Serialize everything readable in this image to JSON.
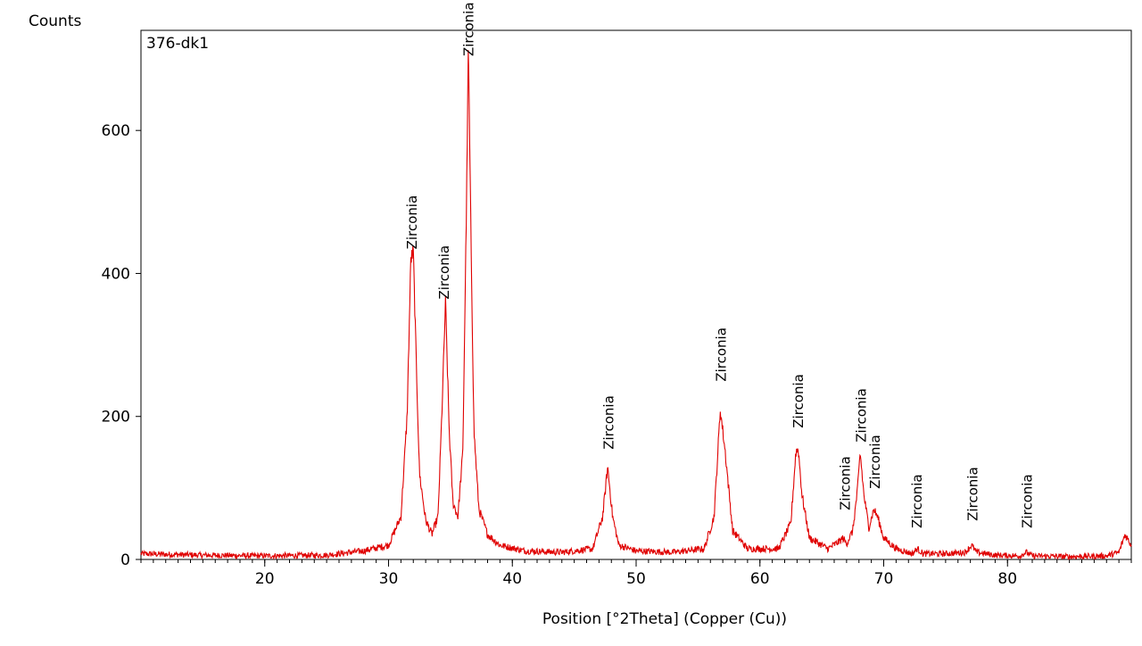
{
  "chart_data": {
    "type": "line",
    "sample_label": "376-dk1",
    "ylabel": "Counts",
    "xlabel": "Position [°2Theta] (Copper (Cu))",
    "xlim": [
      10,
      90
    ],
    "ylim": [
      0,
      740
    ],
    "x_ticks": [
      20,
      30,
      40,
      50,
      60,
      70,
      80
    ],
    "y_ticks": [
      0,
      200,
      400,
      600
    ],
    "x_minor_step": 1,
    "grid": false,
    "line_color": "#e00000",
    "series": [
      {
        "x": [
          10,
          15,
          20,
          25,
          28,
          30,
          31,
          31.5,
          31.8,
          32.0,
          32.2,
          32.5,
          33,
          33.5,
          34.0,
          34.3,
          34.6,
          34.9,
          35.2,
          35.6,
          36.0,
          36.3,
          36.45,
          36.6,
          36.9,
          37.3,
          38,
          39,
          41,
          44,
          46.5,
          47.3,
          47.7,
          48.1,
          48.6,
          50,
          53,
          55.5,
          56.3,
          56.8,
          57.2,
          57.8,
          59,
          61.5,
          62.5,
          62.9,
          63.1,
          63.4,
          64,
          65.5,
          66.4,
          66.7,
          67.0,
          67.5,
          67.9,
          68.1,
          68.4,
          68.8,
          69.2,
          69.5,
          70,
          71,
          72.3,
          72.7,
          73.2,
          75,
          76.6,
          77.1,
          77.5,
          79,
          81,
          81.5,
          82,
          85,
          88,
          89,
          89.5,
          90
        ],
        "y": [
          8,
          6,
          5,
          6,
          12,
          20,
          60,
          200,
          420,
          430,
          300,
          120,
          55,
          35,
          60,
          200,
          360,
          180,
          80,
          60,
          150,
          500,
          720,
          520,
          180,
          70,
          35,
          20,
          12,
          10,
          15,
          60,
          130,
          60,
          20,
          12,
          10,
          15,
          60,
          210,
          150,
          40,
          15,
          15,
          50,
          150,
          155,
          90,
          30,
          15,
          25,
          30,
          22,
          40,
          100,
          150,
          90,
          45,
          70,
          60,
          30,
          15,
          8,
          15,
          8,
          8,
          10,
          20,
          10,
          6,
          5,
          10,
          5,
          4,
          5,
          10,
          35,
          20
        ]
      }
    ],
    "peak_labels": [
      {
        "x": 31.9,
        "y": 430,
        "text": "Zirconia"
      },
      {
        "x": 34.5,
        "y": 360,
        "text": "Zirconia"
      },
      {
        "x": 36.5,
        "y": 700,
        "text": "Zirconia"
      },
      {
        "x": 47.8,
        "y": 150,
        "text": "Zirconia"
      },
      {
        "x": 56.9,
        "y": 245,
        "text": "Zirconia"
      },
      {
        "x": 63.1,
        "y": 180,
        "text": "Zirconia"
      },
      {
        "x": 66.9,
        "y": 65,
        "text": "Zirconia"
      },
      {
        "x": 68.2,
        "y": 160,
        "text": "Zirconia"
      },
      {
        "x": 69.3,
        "y": 95,
        "text": "Zirconia"
      },
      {
        "x": 72.7,
        "y": 40,
        "text": "Zirconia"
      },
      {
        "x": 77.2,
        "y": 50,
        "text": "Zirconia"
      },
      {
        "x": 81.6,
        "y": 40,
        "text": "Zirconia"
      }
    ]
  }
}
